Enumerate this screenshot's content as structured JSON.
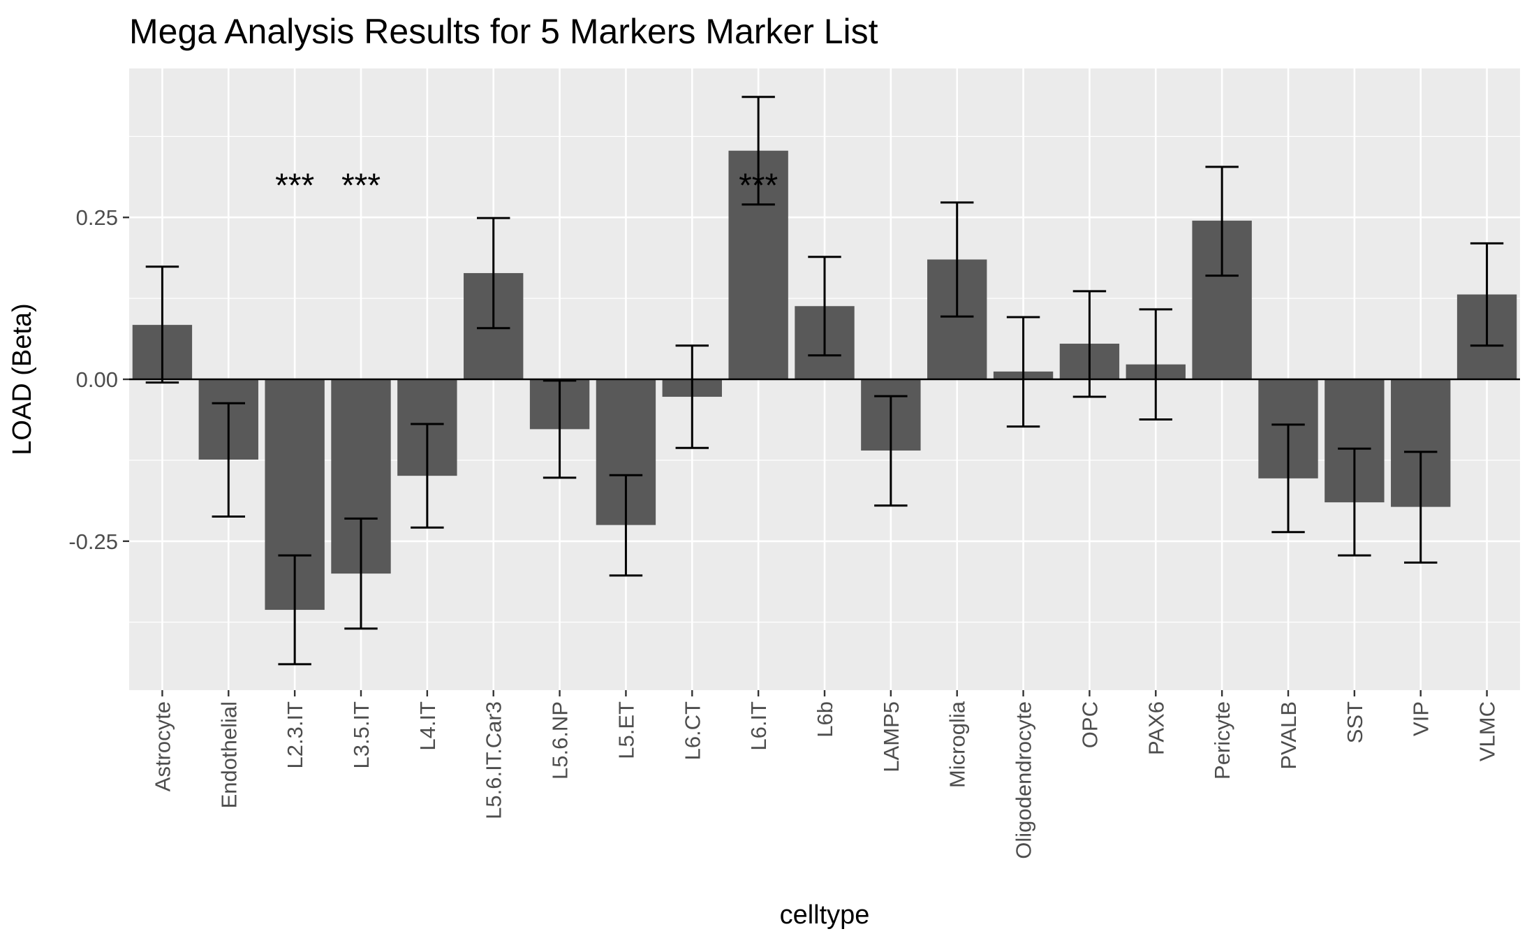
{
  "chart_data": {
    "type": "bar",
    "title": "Mega Analysis Results for 5 Markers Marker List",
    "xlabel": "celltype",
    "ylabel": "LOAD (Beta)",
    "ylim": [
      -0.48,
      0.48
    ],
    "yticks": [
      -0.25,
      0.0,
      0.25
    ],
    "ytick_labels": [
      "-0.25",
      "0.00",
      "0.25"
    ],
    "grid": true,
    "colors": {
      "panel_bg": "#ebebeb",
      "grid": "#ffffff",
      "bar": "#595959",
      "errorbar": "#000000",
      "zero_line": "#000000"
    },
    "categories": [
      "Astrocyte",
      "Endothelial",
      "L2.3.IT",
      "L3.5.IT",
      "L4.IT",
      "L5.6.IT.Car3",
      "L5.6.NP",
      "L5.ET",
      "L6.CT",
      "L6.IT",
      "L6b",
      "LAMP5",
      "Microglia",
      "Oligodendrocyte",
      "OPC",
      "PAX6",
      "Pericyte",
      "PVALB",
      "SST",
      "VIP",
      "VLMC"
    ],
    "values": [
      0.084,
      -0.124,
      -0.356,
      -0.3,
      -0.149,
      0.164,
      -0.077,
      -0.225,
      -0.027,
      0.353,
      0.113,
      -0.11,
      0.185,
      0.012,
      0.055,
      0.023,
      0.245,
      -0.153,
      -0.19,
      -0.197,
      0.131
    ],
    "error_lower": [
      -0.005,
      -0.212,
      -0.44,
      -0.385,
      -0.229,
      0.079,
      -0.152,
      -0.303,
      -0.106,
      0.27,
      0.037,
      -0.195,
      0.097,
      -0.073,
      -0.027,
      -0.062,
      0.16,
      -0.236,
      -0.272,
      -0.283,
      0.052
    ],
    "error_upper": [
      0.174,
      -0.037,
      -0.272,
      -0.215,
      -0.069,
      0.249,
      -0.002,
      -0.148,
      0.052,
      0.436,
      0.189,
      -0.026,
      0.273,
      0.096,
      0.136,
      0.108,
      0.328,
      -0.07,
      -0.107,
      -0.112,
      0.21
    ],
    "annotations": [
      {
        "category": "L2.3.IT",
        "text": "***",
        "y": 0.31
      },
      {
        "category": "L3.5.IT",
        "text": "***",
        "y": 0.31
      },
      {
        "category": "L6.IT",
        "text": "***",
        "y": 0.31
      }
    ]
  }
}
